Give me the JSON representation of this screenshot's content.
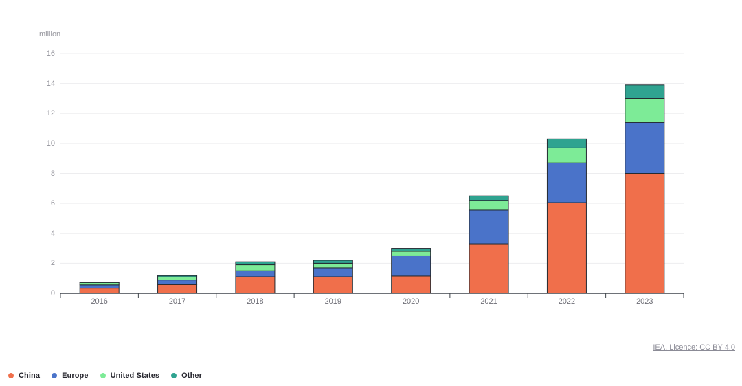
{
  "chart_data": {
    "type": "bar",
    "stacked": true,
    "unit_label": "million",
    "categories": [
      "2016",
      "2017",
      "2018",
      "2019",
      "2020",
      "2021",
      "2022",
      "2023"
    ],
    "series": [
      {
        "name": "China",
        "color": "#F06F4B",
        "values": [
          0.34,
          0.58,
          1.1,
          1.1,
          1.15,
          3.3,
          6.05,
          8.0
        ]
      },
      {
        "name": "Europe",
        "color": "#4A73C9",
        "values": [
          0.22,
          0.31,
          0.4,
          0.6,
          1.35,
          2.25,
          2.65,
          3.4
        ]
      },
      {
        "name": "United States",
        "color": "#7DEB97",
        "values": [
          0.16,
          0.2,
          0.4,
          0.3,
          0.3,
          0.65,
          1.0,
          1.6
        ]
      },
      {
        "name": "Other",
        "color": "#2FA390",
        "values": [
          0.03,
          0.09,
          0.2,
          0.2,
          0.2,
          0.3,
          0.6,
          0.9
        ]
      }
    ],
    "totals": [
      0.75,
      1.18,
      2.1,
      2.2,
      3.0,
      6.5,
      10.3,
      13.9
    ],
    "ylim": [
      0,
      16
    ],
    "ytick_step": 2,
    "grid": true,
    "legend_position": "bottom-left",
    "colors": {
      "bar_outline": "#242a31",
      "gridline": "#ededef",
      "axis": "#3f444b"
    }
  },
  "footer": {
    "license_link": "IEA. Licence: CC BY 4.0"
  }
}
